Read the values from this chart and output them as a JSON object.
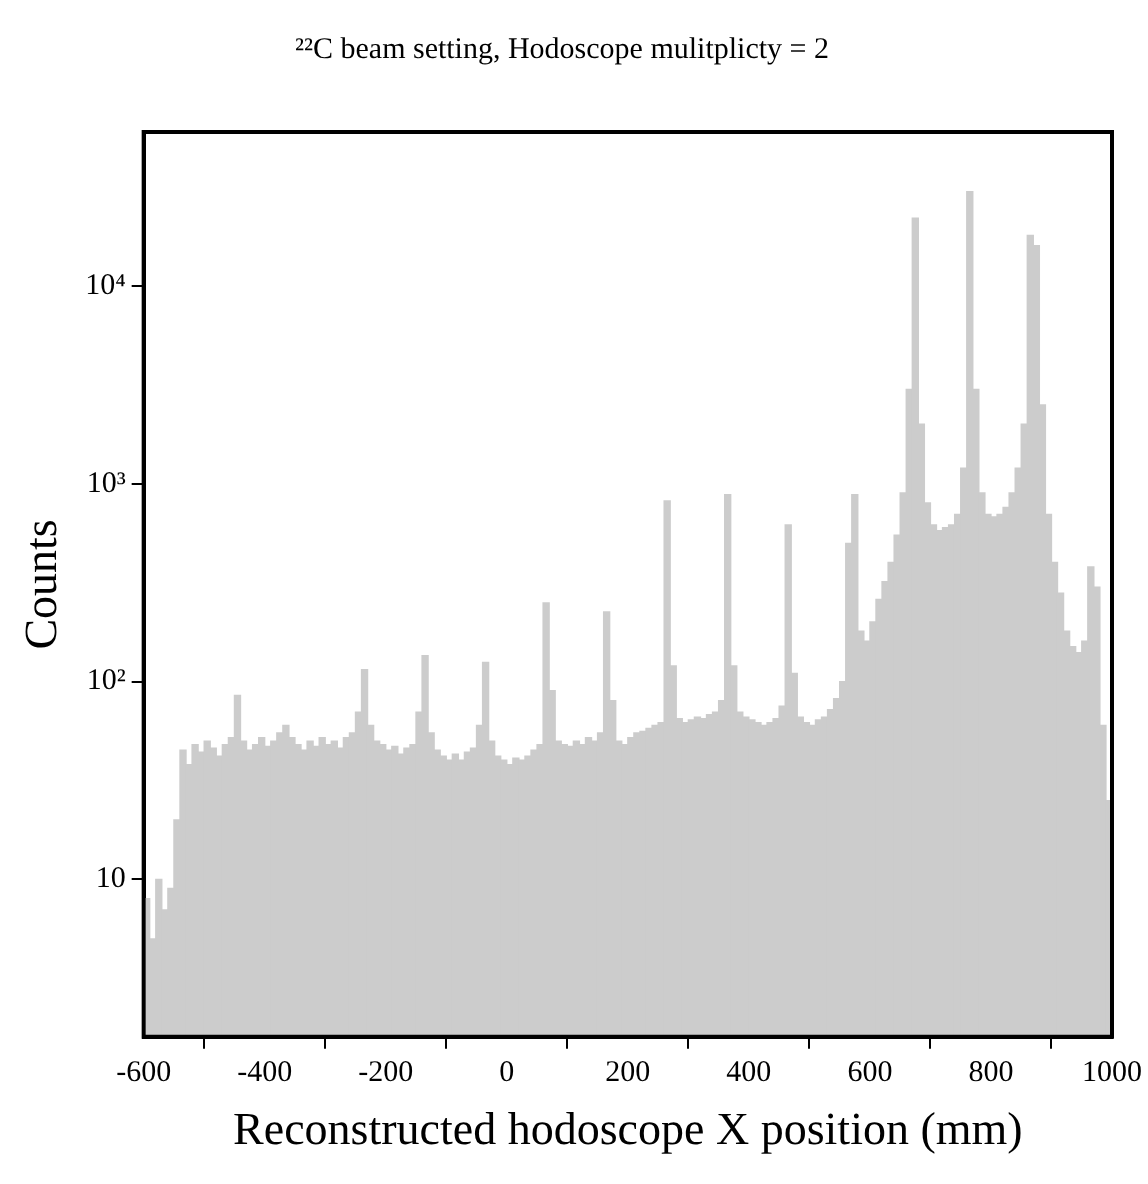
{
  "chart_data": {
    "type": "histogram",
    "title": "²²C beam setting, Hodoscope mulitplicty = 2",
    "xlabel": "Reconstructed hodoscope X position (mm)",
    "ylabel": "Counts",
    "color": "#cccccc",
    "bins": [
      -600,
      -590,
      -580,
      -570,
      -560,
      -550,
      -540,
      -530,
      -520,
      -510,
      -500,
      -490,
      -480,
      -470,
      -460,
      -450,
      -440,
      -430,
      -420,
      -410,
      -400,
      -390,
      -380,
      -370,
      -360,
      -350,
      -340,
      -330,
      -320,
      -310,
      -300,
      -290,
      -280,
      -270,
      -260,
      -250,
      -240,
      -230,
      -220,
      -210,
      -200,
      -190,
      -180,
      -170,
      -160,
      -150,
      -140,
      -130,
      -120,
      -110,
      -100,
      -90,
      -80,
      -70,
      -60,
      -50,
      -40,
      -30,
      -20,
      -10,
      0,
      10,
      20,
      30,
      40,
      50,
      60,
      70,
      80,
      90,
      100,
      110,
      120,
      130,
      140,
      150,
      160,
      170,
      180,
      190,
      200,
      210,
      220,
      230,
      240,
      250,
      260,
      270,
      280,
      290,
      300,
      310,
      320,
      330,
      340,
      350,
      360,
      370,
      380,
      390,
      400,
      410,
      420,
      430,
      440,
      450,
      460,
      470,
      480,
      490,
      500,
      510,
      520,
      530,
      540,
      550,
      560,
      570,
      580,
      590,
      600,
      610,
      620,
      630,
      640,
      650,
      660,
      670,
      680,
      690,
      700,
      710,
      720,
      730,
      740,
      750,
      760,
      770,
      780,
      790,
      800,
      810,
      820,
      830,
      840,
      850,
      860,
      870,
      880,
      890,
      900,
      910,
      920,
      930,
      940,
      950,
      960,
      970,
      980,
      990,
      1000
    ],
    "values": [
      8,
      5,
      10,
      7,
      9,
      20,
      45,
      38,
      48,
      44,
      50,
      46,
      42,
      48,
      52,
      85,
      50,
      45,
      48,
      52,
      47,
      50,
      55,
      60,
      52,
      48,
      45,
      50,
      47,
      52,
      48,
      50,
      46,
      52,
      55,
      70,
      115,
      60,
      50,
      48,
      45,
      47,
      43,
      46,
      48,
      70,
      135,
      55,
      45,
      42,
      40,
      43,
      40,
      44,
      46,
      60,
      125,
      50,
      42,
      40,
      38,
      41,
      40,
      42,
      45,
      48,
      250,
      90,
      50,
      48,
      47,
      50,
      48,
      52,
      50,
      55,
      225,
      80,
      50,
      48,
      52,
      55,
      56,
      58,
      60,
      62,
      820,
      120,
      65,
      62,
      64,
      66,
      65,
      68,
      70,
      80,
      880,
      120,
      70,
      66,
      64,
      62,
      60,
      62,
      65,
      75,
      620,
      110,
      66,
      62,
      60,
      64,
      66,
      72,
      82,
      100,
      500,
      880,
      180,
      160,
      200,
      260,
      320,
      400,
      550,
      900,
      3000,
      22000,
      2000,
      800,
      620,
      580,
      600,
      620,
      700,
      1200,
      30000,
      3000,
      900,
      700,
      680,
      700,
      760,
      900,
      1200,
      2000,
      18000,
      16000,
      2500,
      700,
      400,
      280,
      180,
      150,
      140,
      160,
      380,
      300,
      60,
      25
    ],
    "log": "y",
    "xlim": [
      -600,
      1000
    ],
    "xticks": [
      -600,
      -400,
      -200,
      0,
      200,
      400,
      600,
      800,
      1000
    ],
    "ylim": [
      1.6,
      60000
    ],
    "yticks": [
      {
        "value": 10,
        "label": "10"
      },
      {
        "value": 100,
        "label": "10²"
      },
      {
        "value": 1000,
        "label": "10³"
      },
      {
        "value": 10000,
        "label": "10⁴"
      }
    ],
    "grid": false,
    "legend": false
  }
}
